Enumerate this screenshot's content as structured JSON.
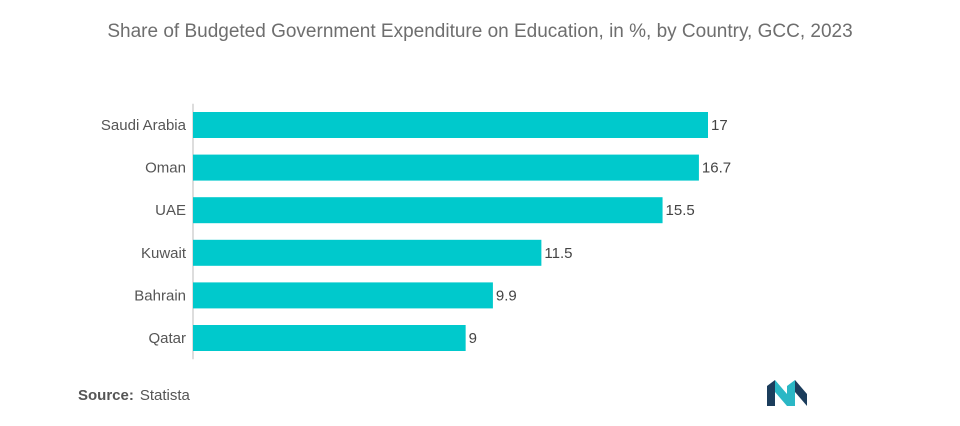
{
  "chart_data": {
    "type": "bar",
    "orientation": "horizontal",
    "title": "Share of Budgeted Government Expenditure on Education, in %, by Country, GCC, 2023",
    "categories": [
      "Saudi Arabia",
      "Oman",
      "UAE",
      "Kuwait",
      "Bahrain",
      "Qatar"
    ],
    "values": [
      17,
      16.7,
      15.5,
      11.5,
      9.9,
      9
    ],
    "data_labels": [
      "17",
      "16.7",
      "15.5",
      "11.5",
      "9.9",
      "9"
    ],
    "xlim": [
      0,
      17
    ],
    "grid": false,
    "legend": "none",
    "bar_color": "#00c9cc"
  },
  "source": {
    "label": "Source:",
    "value": "Statista"
  },
  "logo": {
    "icon": "mordor-intelligence-logo-icon",
    "colors": [
      "#1b3d5c",
      "#2ab7c5"
    ]
  }
}
